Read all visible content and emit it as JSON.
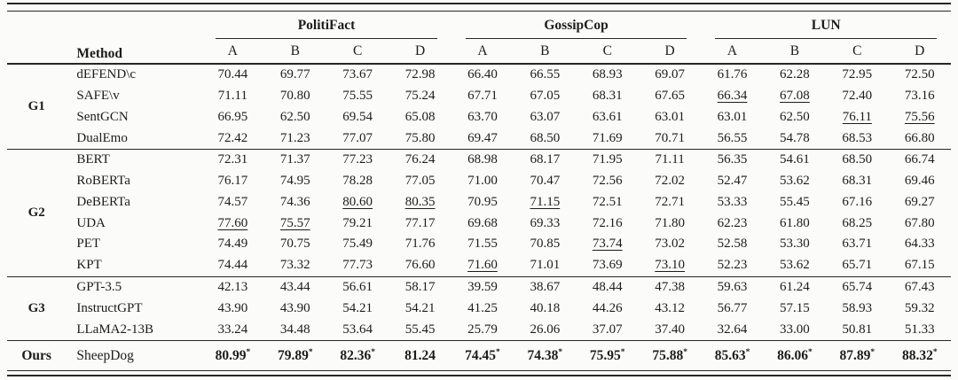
{
  "table": {
    "method_header": "Method",
    "datasets": [
      "PolitiFact",
      "GossipCop",
      "LUN"
    ],
    "sub_columns": [
      "A",
      "B",
      "C",
      "D"
    ],
    "colors": {
      "text": "#1c1c1c",
      "rule": "#262626",
      "background": "#fbfbfa"
    },
    "groups": [
      {
        "label": "G1",
        "rows": [
          {
            "method": "dEFEND\\c",
            "values": [
              "70.44",
              "69.77",
              "73.67",
              "72.98",
              "66.40",
              "66.55",
              "68.93",
              "69.07",
              "61.76",
              "62.28",
              "72.95",
              "72.50"
            ],
            "marks": [
              "",
              "",
              "",
              "",
              "",
              "",
              "",
              "",
              "",
              "",
              "",
              ""
            ]
          },
          {
            "method": "SAFE\\v",
            "values": [
              "71.11",
              "70.80",
              "75.55",
              "75.24",
              "67.71",
              "67.05",
              "68.31",
              "67.65",
              "66.34",
              "67.08",
              "72.40",
              "73.16"
            ],
            "marks": [
              "",
              "",
              "",
              "",
              "",
              "",
              "",
              "",
              "u",
              "u",
              "",
              ""
            ]
          },
          {
            "method": "SentGCN",
            "values": [
              "66.95",
              "62.50",
              "69.54",
              "65.08",
              "63.70",
              "63.07",
              "63.61",
              "63.01",
              "63.01",
              "62.50",
              "76.11",
              "75.56"
            ],
            "marks": [
              "",
              "",
              "",
              "",
              "",
              "",
              "",
              "",
              "",
              "",
              "u",
              "u"
            ]
          },
          {
            "method": "DualEmo",
            "values": [
              "72.42",
              "71.23",
              "77.07",
              "75.80",
              "69.47",
              "68.50",
              "71.69",
              "70.71",
              "56.55",
              "54.78",
              "68.53",
              "66.80"
            ],
            "marks": [
              "",
              "",
              "",
              "",
              "",
              "",
              "",
              "",
              "",
              "",
              "",
              ""
            ]
          }
        ]
      },
      {
        "label": "G2",
        "rows": [
          {
            "method": "BERT",
            "values": [
              "72.31",
              "71.37",
              "77.23",
              "76.24",
              "68.98",
              "68.17",
              "71.95",
              "71.11",
              "56.35",
              "54.61",
              "68.50",
              "66.74"
            ],
            "marks": [
              "",
              "",
              "",
              "",
              "",
              "",
              "",
              "",
              "",
              "",
              "",
              ""
            ]
          },
          {
            "method": "RoBERTa",
            "values": [
              "76.17",
              "74.95",
              "78.28",
              "77.05",
              "71.00",
              "70.47",
              "72.56",
              "72.02",
              "52.47",
              "53.62",
              "68.31",
              "69.46"
            ],
            "marks": [
              "",
              "",
              "",
              "",
              "",
              "",
              "",
              "",
              "",
              "",
              "",
              ""
            ]
          },
          {
            "method": "DeBERTa",
            "values": [
              "74.57",
              "74.36",
              "80.60",
              "80.35",
              "70.95",
              "71.15",
              "72.51",
              "72.71",
              "53.33",
              "55.45",
              "67.16",
              "69.27"
            ],
            "marks": [
              "",
              "",
              "u",
              "u",
              "",
              "u",
              "",
              "",
              "",
              "",
              "",
              ""
            ]
          },
          {
            "method": "UDA",
            "values": [
              "77.60",
              "75.57",
              "79.21",
              "77.17",
              "69.68",
              "69.33",
              "72.16",
              "71.80",
              "62.23",
              "61.80",
              "68.25",
              "67.80"
            ],
            "marks": [
              "u",
              "u",
              "",
              "",
              "",
              "",
              "",
              "",
              "",
              "",
              "",
              ""
            ]
          },
          {
            "method": "PET",
            "values": [
              "74.49",
              "70.75",
              "75.49",
              "71.76",
              "71.55",
              "70.85",
              "73.74",
              "73.02",
              "52.58",
              "53.30",
              "63.71",
              "64.33"
            ],
            "marks": [
              "",
              "",
              "",
              "",
              "",
              "",
              "u",
              "",
              "",
              "",
              "",
              ""
            ]
          },
          {
            "method": "KPT",
            "values": [
              "74.44",
              "73.32",
              "77.73",
              "76.60",
              "71.60",
              "71.01",
              "73.69",
              "73.10",
              "52.23",
              "53.62",
              "65.71",
              "67.15"
            ],
            "marks": [
              "",
              "",
              "",
              "",
              "u",
              "",
              "",
              "u",
              "",
              "",
              "",
              ""
            ]
          }
        ]
      },
      {
        "label": "G3",
        "rows": [
          {
            "method": "GPT-3.5",
            "values": [
              "42.13",
              "43.44",
              "56.61",
              "58.17",
              "39.59",
              "38.67",
              "48.44",
              "47.38",
              "59.63",
              "61.24",
              "65.74",
              "67.43"
            ],
            "marks": [
              "",
              "",
              "",
              "",
              "",
              "",
              "",
              "",
              "",
              "",
              "",
              ""
            ]
          },
          {
            "method": "InstructGPT",
            "values": [
              "43.90",
              "43.90",
              "54.21",
              "54.21",
              "41.25",
              "40.18",
              "44.26",
              "43.12",
              "56.77",
              "57.15",
              "58.93",
              "59.32"
            ],
            "marks": [
              "",
              "",
              "",
              "",
              "",
              "",
              "",
              "",
              "",
              "",
              "",
              ""
            ]
          },
          {
            "method": "LLaMA2-13B",
            "values": [
              "33.24",
              "34.48",
              "53.64",
              "55.45",
              "25.79",
              "26.06",
              "37.07",
              "37.40",
              "32.64",
              "33.00",
              "50.81",
              "51.33"
            ],
            "marks": [
              "",
              "",
              "",
              "",
              "",
              "",
              "",
              "",
              "",
              "",
              "",
              ""
            ]
          }
        ]
      },
      {
        "label": "Ours",
        "is_ours": true,
        "rows": [
          {
            "method": "SheepDog",
            "values": [
              "80.99",
              "79.89",
              "82.36",
              "81.24",
              "74.45",
              "74.38",
              "75.95",
              "75.88",
              "85.63",
              "86.06",
              "87.89",
              "88.32"
            ],
            "marks": [
              "bs",
              "bs",
              "bs",
              "b",
              "bs",
              "bs",
              "bs",
              "bs",
              "bs",
              "bs",
              "bs",
              "bs"
            ]
          }
        ]
      }
    ]
  }
}
